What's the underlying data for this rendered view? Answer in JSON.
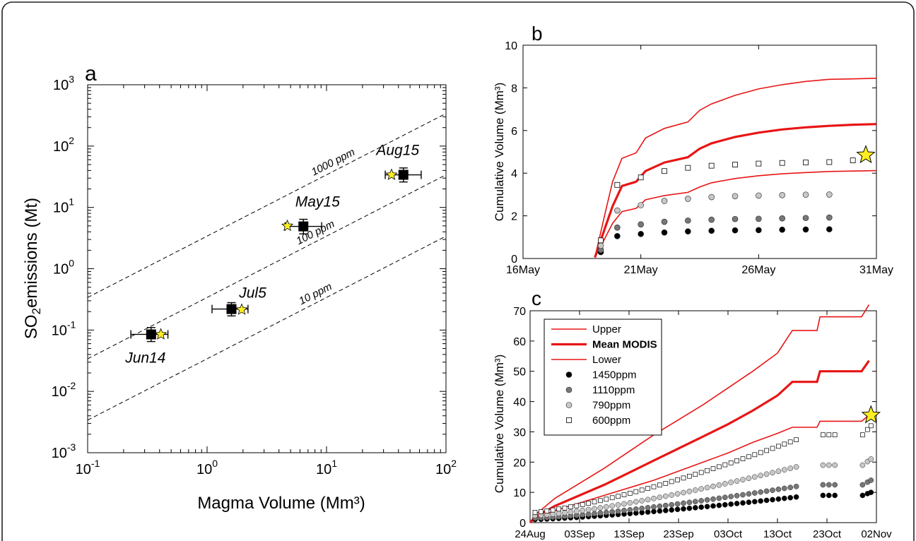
{
  "chart_data": [
    {
      "panel": "a",
      "type": "scatter",
      "xlabel": "Magma Volume (Mm³)",
      "ylabel_sym": "SO",
      "ylabel_sub": "2",
      "ylabel_rest": "emissions (Mt)",
      "xscale": "log",
      "yscale": "log",
      "xlim": [
        0.1,
        100
      ],
      "ylim": [
        0.001,
        1000
      ],
      "x_ticks": [
        {
          "base": "10",
          "exp": "-1",
          "value": 0.1
        },
        {
          "base": "10",
          "exp": "0",
          "value": 1
        },
        {
          "base": "10",
          "exp": "1",
          "value": 10
        },
        {
          "base": "10",
          "exp": "2",
          "value": 100
        }
      ],
      "y_ticks": [
        {
          "base": "10",
          "exp": "-3",
          "value": 0.001
        },
        {
          "base": "10",
          "exp": "-2",
          "value": 0.01
        },
        {
          "base": "10",
          "exp": "-1",
          "value": 0.1
        },
        {
          "base": "10",
          "exp": "0",
          "value": 1
        },
        {
          "base": "10",
          "exp": "1",
          "value": 10
        },
        {
          "base": "10",
          "exp": "2",
          "value": 100
        },
        {
          "base": "10",
          "exp": "3",
          "value": 1000
        }
      ],
      "ppm_lines": [
        {
          "label": "1000 ppm",
          "ratio": 3.4
        },
        {
          "label": "100 ppm",
          "ratio": 0.34
        },
        {
          "label": "10 ppm",
          "ratio": 0.034
        }
      ],
      "points": [
        {
          "label": "Jun14",
          "x": 0.34,
          "y": 0.085,
          "xerr": [
            0.23,
            0.47
          ],
          "yerr": [
            0.065,
            0.11
          ],
          "star_x": 0.41,
          "star_y": 0.085
        },
        {
          "label": "Jul5",
          "x": 1.6,
          "y": 0.22,
          "xerr": [
            1.1,
            2.2
          ],
          "yerr": [
            0.17,
            0.28
          ],
          "star_x": 1.95,
          "star_y": 0.215
        },
        {
          "label": "May15",
          "x": 6.4,
          "y": 4.9,
          "xerr": [
            4.5,
            9.1
          ],
          "yerr": [
            3.7,
            6.4
          ],
          "star_x": 4.7,
          "star_y": 5.0
        },
        {
          "label": "Aug15",
          "x": 44,
          "y": 34,
          "xerr": [
            31,
            62
          ],
          "yerr": [
            26,
            44
          ],
          "star_x": 35,
          "star_y": 34
        }
      ],
      "colors": {
        "marker": "#000000",
        "star": "#ffee22"
      }
    },
    {
      "panel": "b",
      "type": "line",
      "ylabel": "Cumulative Volume (Mm³)",
      "xlim_days": [
        0,
        15
      ],
      "ylim": [
        0,
        10
      ],
      "y_ticks": [
        0,
        2,
        4,
        6,
        8,
        10
      ],
      "x_ticks": [
        {
          "label": "16May",
          "day": 0
        },
        {
          "label": "21May",
          "day": 5
        },
        {
          "label": "26May",
          "day": 10
        },
        {
          "label": "31May",
          "day": 15
        }
      ],
      "series": [
        {
          "name": "Upper",
          "x": [
            3.05,
            3.5,
            3.8,
            4.2,
            4.8,
            5.2,
            6.0,
            7.0,
            7.5,
            8.0,
            9.0,
            10.0,
            11.0,
            12.0,
            13.0,
            14.0,
            15.0
          ],
          "y": [
            0.05,
            2.2,
            3.6,
            4.7,
            4.95,
            5.65,
            6.1,
            6.4,
            6.95,
            7.25,
            7.65,
            7.95,
            8.15,
            8.3,
            8.4,
            8.42,
            8.45
          ]
        },
        {
          "name": "Mean MODIS",
          "x": [
            3.05,
            3.5,
            3.8,
            4.2,
            4.8,
            5.2,
            6.0,
            7.0,
            7.5,
            8.0,
            9.0,
            10.0,
            11.0,
            12.0,
            13.0,
            14.0,
            15.0
          ],
          "y": [
            0.05,
            1.5,
            2.45,
            3.4,
            3.6,
            4.1,
            4.5,
            4.75,
            5.15,
            5.4,
            5.7,
            5.9,
            6.05,
            6.15,
            6.22,
            6.27,
            6.3
          ]
        },
        {
          "name": "Lower",
          "x": [
            3.05,
            3.5,
            3.8,
            4.2,
            4.8,
            5.2,
            6.0,
            7.0,
            7.5,
            8.0,
            9.0,
            10.0,
            11.0,
            12.0,
            13.0,
            14.0,
            15.0
          ],
          "y": [
            0.05,
            1.0,
            1.65,
            2.2,
            2.35,
            2.75,
            2.95,
            3.1,
            3.35,
            3.55,
            3.75,
            3.88,
            3.97,
            4.03,
            4.08,
            4.1,
            4.12
          ]
        }
      ],
      "scatter": [
        {
          "name": "1450ppm",
          "x": [
            3.3,
            4.0,
            5.0,
            6.0,
            7.0,
            8.0,
            9.0,
            10.0,
            11.0,
            12.0,
            13.0
          ],
          "y": [
            0.3,
            1.05,
            1.15,
            1.22,
            1.27,
            1.3,
            1.32,
            1.33,
            1.35,
            1.36,
            1.37
          ]
        },
        {
          "name": "1110ppm",
          "x": [
            3.3,
            4.0,
            5.0,
            6.0,
            7.0,
            8.0,
            9.0,
            10.0,
            11.0,
            12.0,
            13.0
          ],
          "y": [
            0.4,
            1.45,
            1.6,
            1.72,
            1.78,
            1.82,
            1.85,
            1.86,
            1.88,
            1.9,
            1.92
          ]
        },
        {
          "name": "790ppm",
          "x": [
            3.3,
            4.0,
            5.0,
            6.0,
            7.0,
            8.0,
            9.0,
            10.0,
            11.0,
            12.0,
            13.0
          ],
          "y": [
            0.6,
            2.25,
            2.5,
            2.7,
            2.8,
            2.88,
            2.92,
            2.95,
            2.97,
            2.99,
            3.0
          ]
        },
        {
          "name": "600ppm",
          "x": [
            3.3,
            4.0,
            5.0,
            6.0,
            7.0,
            8.0,
            9.0,
            10.0,
            11.0,
            12.0,
            13.0,
            14.0
          ],
          "y": [
            0.85,
            3.45,
            3.8,
            4.1,
            4.25,
            4.35,
            4.4,
            4.45,
            4.48,
            4.5,
            4.52,
            4.6
          ]
        }
      ],
      "star": {
        "x": 14.55,
        "y": 4.85
      }
    },
    {
      "panel": "c",
      "type": "line",
      "ylabel": "Cumulative Volume (Mm³)",
      "xlim_days": [
        0,
        70
      ],
      "ylim": [
        0,
        70
      ],
      "y_ticks": [
        0,
        10,
        20,
        30,
        40,
        50,
        60,
        70
      ],
      "x_ticks": [
        {
          "label": "24Aug",
          "day": 0
        },
        {
          "label": "03Sep",
          "day": 10
        },
        {
          "label": "13Sep",
          "day": 20
        },
        {
          "label": "23Sep",
          "day": 30
        },
        {
          "label": "03Oct",
          "day": 40
        },
        {
          "label": "13Oct",
          "day": 50
        },
        {
          "label": "23Oct",
          "day": 60
        },
        {
          "label": "02Nov",
          "day": 70
        }
      ],
      "series": [
        {
          "name": "Upper",
          "x": [
            0,
            1,
            5,
            10,
            15,
            20,
            25,
            30,
            35,
            40,
            45,
            50,
            53,
            54,
            58,
            58.6,
            65,
            67,
            68.5
          ],
          "y": [
            0,
            2.5,
            8,
            13,
            18,
            23.5,
            29,
            34,
            39,
            44.5,
            50,
            56,
            63.5,
            63.5,
            63.5,
            68,
            68,
            68,
            72
          ]
        },
        {
          "name": "Mean MODIS",
          "x": [
            0,
            1,
            5,
            10,
            15,
            20,
            25,
            30,
            35,
            40,
            45,
            50,
            53,
            54,
            58,
            58.6,
            65,
            67,
            68.5
          ],
          "y": [
            0,
            1.8,
            5.5,
            9,
            12.5,
            16.5,
            20.5,
            24.5,
            28.5,
            32.5,
            37,
            42,
            46.5,
            46.5,
            46.5,
            50,
            50,
            50,
            53.5
          ]
        },
        {
          "name": "Lower",
          "x": [
            0,
            1,
            5,
            10,
            15,
            20,
            25,
            30,
            35,
            40,
            45,
            50,
            53,
            54,
            58,
            58.6,
            65,
            67,
            68.5
          ],
          "y": [
            0,
            1.3,
            4,
            6.5,
            9,
            11.5,
            14,
            17,
            20,
            23,
            26.5,
            29.5,
            31.5,
            31.5,
            31.5,
            33.5,
            33.5,
            33.5,
            35.5
          ]
        }
      ],
      "scatter": [
        {
          "name": "1450ppm",
          "y_end": 8.5,
          "y_gap": 9,
          "y_last": 10
        },
        {
          "name": "1110ppm",
          "y_end": 12,
          "y_gap": 12.5,
          "y_last": 14
        },
        {
          "name": "790ppm",
          "y_end": 18.5,
          "y_gap": 19,
          "y_last": 21
        },
        {
          "name": "600ppm",
          "y_end": 27.5,
          "y_gap": 29,
          "y_last": 32
        }
      ],
      "star": {
        "x": 68.9,
        "y": 35.5
      },
      "legend": {
        "placement": "top-left",
        "entries": [
          {
            "label": "Upper",
            "kind": "line"
          },
          {
            "label": "Mean MODIS",
            "kind": "thick-line"
          },
          {
            "label": "Lower",
            "kind": "line"
          },
          {
            "label": "1450ppm",
            "kind": "dot",
            "fill": "#000000"
          },
          {
            "label": "1110ppm",
            "kind": "dot",
            "fill": "#777777"
          },
          {
            "label": "790ppm",
            "kind": "dot",
            "fill": "#c8c8c8"
          },
          {
            "label": "600ppm",
            "kind": "square",
            "fill": "#ffffff"
          }
        ]
      }
    }
  ],
  "panel_labels": {
    "a": "a",
    "b": "b",
    "c": "c"
  },
  "colors": {
    "red": "#e81515",
    "star": "#ffee22",
    "frame": "#333333"
  }
}
